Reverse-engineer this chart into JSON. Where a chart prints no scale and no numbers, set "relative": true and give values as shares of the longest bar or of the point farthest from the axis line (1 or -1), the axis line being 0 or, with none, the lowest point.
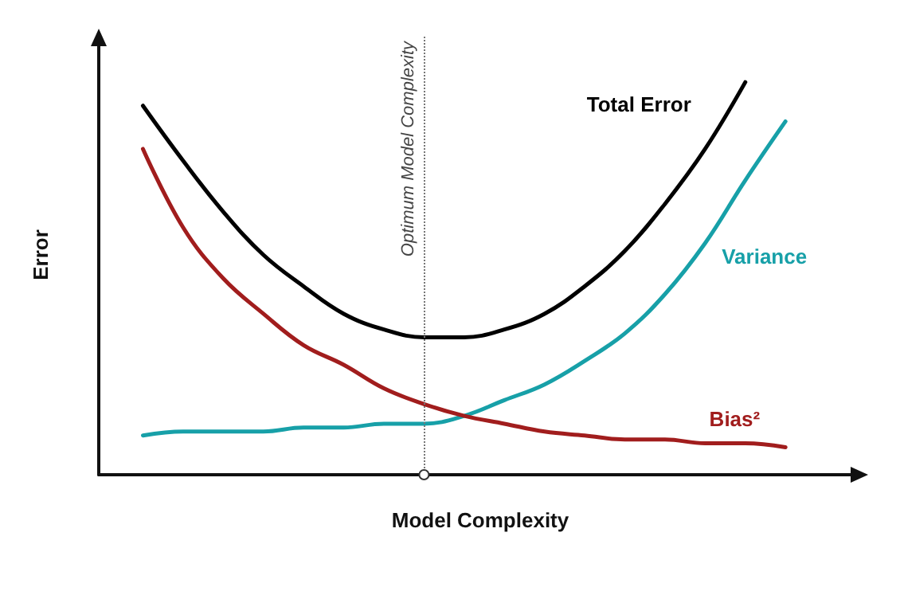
{
  "chart_data": {
    "type": "line",
    "relative": true,
    "xlabel": "Model Complexity",
    "ylabel": "Error",
    "categories": [
      null,
      null,
      null,
      null,
      null,
      null,
      null,
      null,
      null,
      null,
      null,
      null,
      null,
      null,
      null,
      null,
      null
    ],
    "series": [
      {
        "name": "Total Error",
        "color": "#000000",
        "values": [
          0.94,
          0.8,
          0.67,
          0.56,
          0.48,
          0.41,
          0.37,
          0.35,
          0.35,
          0.37,
          0.41,
          0.48,
          0.57,
          0.69,
          0.83,
          1.0,
          null
        ]
      },
      {
        "name": "Variance",
        "color": "#17a0a8",
        "values": [
          0.1,
          0.11,
          0.11,
          0.11,
          0.12,
          0.12,
          0.13,
          0.13,
          0.15,
          0.19,
          0.23,
          0.29,
          0.36,
          0.46,
          0.59,
          0.75,
          0.9
        ]
      },
      {
        "name": "Bias²",
        "color": "#a11d1d",
        "values": [
          0.83,
          0.63,
          0.5,
          0.41,
          0.33,
          0.28,
          0.22,
          0.18,
          0.15,
          0.13,
          0.11,
          0.1,
          0.09,
          0.09,
          0.08,
          0.08,
          0.07
        ]
      }
    ],
    "annotations": [
      "Optimum Model Complexity"
    ],
    "legend": false,
    "grid": false,
    "marker": "none",
    "line_style": "solid"
  }
}
